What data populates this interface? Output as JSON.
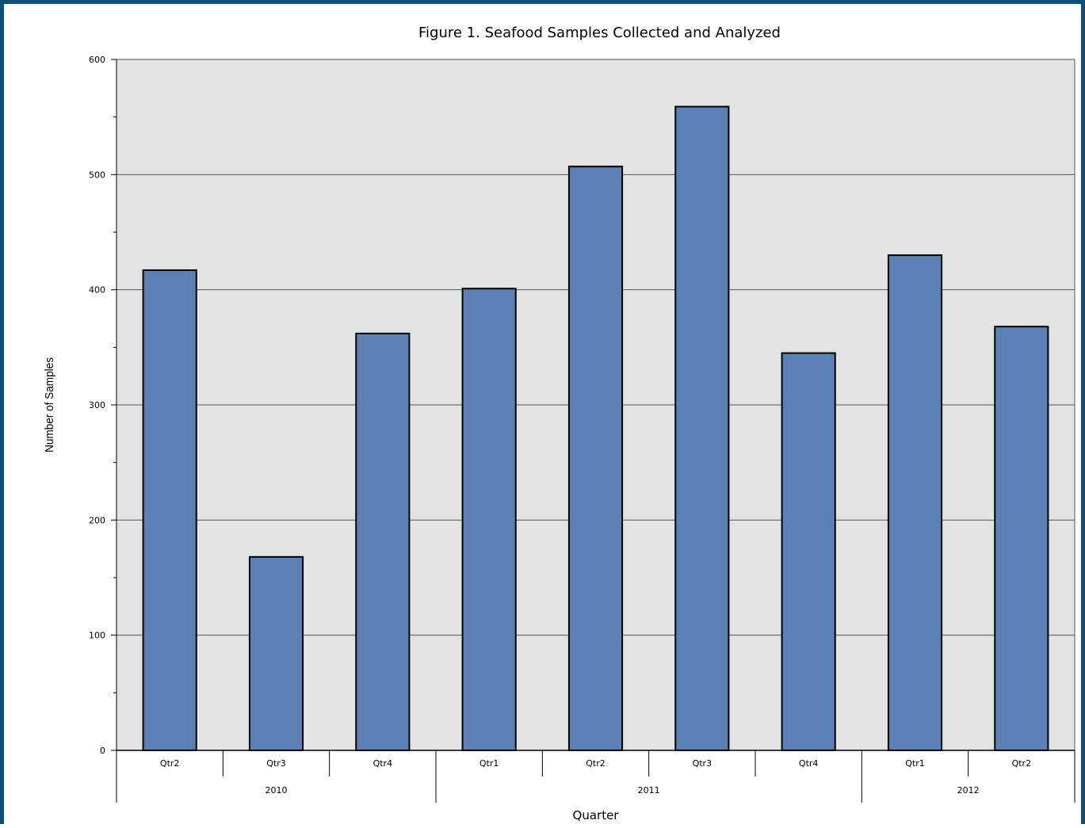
{
  "chart_data": {
    "type": "bar",
    "title": "Figure 1.  Seafood Samples Collected and Analyzed",
    "xlabel": "Quarter",
    "ylabel": "Number of Samples",
    "ylim": [
      0,
      600
    ],
    "yticks": [
      "0",
      "100",
      "200",
      "300",
      "400",
      "500",
      "600"
    ],
    "grid": true,
    "legend": "none",
    "categories": [
      "Qtr2",
      "Qtr3",
      "Qtr4",
      "Qtr1",
      "Qtr2",
      "Qtr3",
      "Qtr4",
      "Qtr1",
      "Qtr2"
    ],
    "groups": [
      {
        "label": "2010",
        "count": 3
      },
      {
        "label": "2011",
        "count": 4
      },
      {
        "label": "2012",
        "count": 2
      }
    ],
    "series": [
      {
        "values": [
          417,
          168,
          362,
          401,
          507,
          559,
          345,
          430,
          368
        ]
      }
    ]
  },
  "colors": {
    "bar": "#5b80b3",
    "bar_stroke": "#000000",
    "plot_bg": "#e3e3e3",
    "gridline": "#555555",
    "frame": "#0b4f7a"
  }
}
